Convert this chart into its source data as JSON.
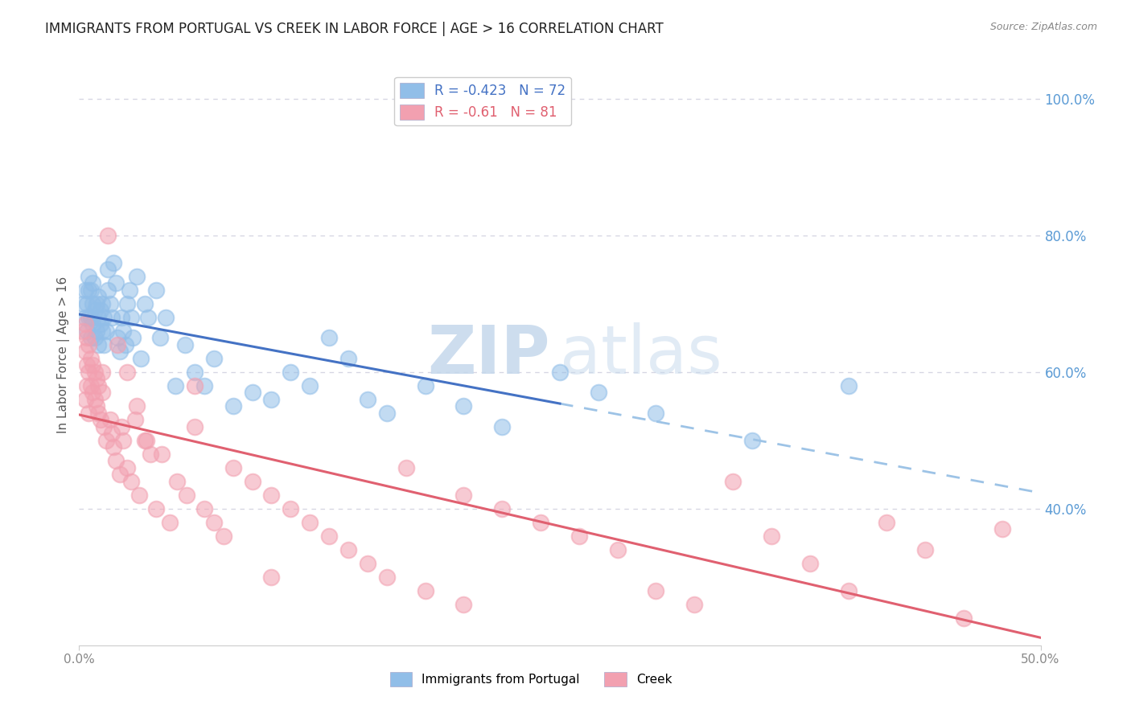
{
  "title": "IMMIGRANTS FROM PORTUGAL VS CREEK IN LABOR FORCE | AGE > 16 CORRELATION CHART",
  "source": "Source: ZipAtlas.com",
  "ylabel": "In Labor Force | Age > 16",
  "x_min": 0.0,
  "x_max": 0.5,
  "y_min": 0.2,
  "y_max": 1.05,
  "y_ticks": [
    0.4,
    0.6,
    0.8,
    1.0
  ],
  "y_tick_labels": [
    "40.0%",
    "60.0%",
    "80.0%",
    "100.0%"
  ],
  "x_ticks": [
    0.0,
    0.5
  ],
  "x_tick_labels": [
    "0.0%",
    "50.0%"
  ],
  "portugal_R": -0.423,
  "portugal_N": 72,
  "creek_R": -0.61,
  "creek_N": 81,
  "portugal_scatter_color": "#91BEE8",
  "creek_scatter_color": "#F2A0B0",
  "portugal_line_color": "#4472C4",
  "creek_line_color": "#E06070",
  "portugal_dash_color": "#9DC3E6",
  "background_color": "#FFFFFF",
  "grid_color": "#CCCCDD",
  "title_color": "#222222",
  "right_axis_color": "#5B9BD5",
  "legend_label_color": "#E06070",
  "watermark_color": "#D8E8F0",
  "portugal_x": [
    0.002,
    0.003,
    0.003,
    0.004,
    0.004,
    0.005,
    0.005,
    0.005,
    0.006,
    0.006,
    0.006,
    0.007,
    0.007,
    0.007,
    0.008,
    0.008,
    0.009,
    0.009,
    0.01,
    0.01,
    0.01,
    0.011,
    0.011,
    0.012,
    0.012,
    0.013,
    0.013,
    0.014,
    0.015,
    0.015,
    0.016,
    0.017,
    0.018,
    0.019,
    0.02,
    0.021,
    0.022,
    0.023,
    0.024,
    0.025,
    0.026,
    0.027,
    0.028,
    0.03,
    0.032,
    0.034,
    0.036,
    0.04,
    0.042,
    0.045,
    0.05,
    0.055,
    0.06,
    0.065,
    0.07,
    0.08,
    0.09,
    0.1,
    0.11,
    0.12,
    0.13,
    0.14,
    0.15,
    0.16,
    0.18,
    0.2,
    0.22,
    0.25,
    0.27,
    0.3,
    0.35,
    0.4
  ],
  "portugal_y": [
    0.7,
    0.68,
    0.72,
    0.66,
    0.7,
    0.68,
    0.72,
    0.74,
    0.65,
    0.68,
    0.72,
    0.67,
    0.7,
    0.73,
    0.65,
    0.69,
    0.66,
    0.7,
    0.68,
    0.71,
    0.64,
    0.67,
    0.69,
    0.66,
    0.7,
    0.64,
    0.68,
    0.66,
    0.72,
    0.75,
    0.7,
    0.68,
    0.76,
    0.73,
    0.65,
    0.63,
    0.68,
    0.66,
    0.64,
    0.7,
    0.72,
    0.68,
    0.65,
    0.74,
    0.62,
    0.7,
    0.68,
    0.72,
    0.65,
    0.68,
    0.58,
    0.64,
    0.6,
    0.58,
    0.62,
    0.55,
    0.57,
    0.56,
    0.6,
    0.58,
    0.65,
    0.62,
    0.56,
    0.54,
    0.58,
    0.55,
    0.52,
    0.6,
    0.57,
    0.54,
    0.5,
    0.58
  ],
  "creek_x": [
    0.002,
    0.003,
    0.003,
    0.004,
    0.004,
    0.005,
    0.005,
    0.006,
    0.006,
    0.007,
    0.007,
    0.008,
    0.008,
    0.009,
    0.009,
    0.01,
    0.01,
    0.011,
    0.012,
    0.012,
    0.013,
    0.014,
    0.015,
    0.016,
    0.017,
    0.018,
    0.019,
    0.02,
    0.021,
    0.022,
    0.023,
    0.025,
    0.027,
    0.029,
    0.031,
    0.034,
    0.037,
    0.04,
    0.043,
    0.047,
    0.051,
    0.056,
    0.06,
    0.065,
    0.07,
    0.075,
    0.08,
    0.09,
    0.1,
    0.11,
    0.12,
    0.13,
    0.14,
    0.15,
    0.16,
    0.17,
    0.18,
    0.2,
    0.22,
    0.24,
    0.26,
    0.28,
    0.3,
    0.32,
    0.34,
    0.36,
    0.38,
    0.4,
    0.42,
    0.44,
    0.46,
    0.003,
    0.004,
    0.005,
    0.025,
    0.03,
    0.035,
    0.06,
    0.2,
    0.48,
    0.1
  ],
  "creek_y": [
    0.66,
    0.63,
    0.67,
    0.61,
    0.65,
    0.6,
    0.64,
    0.58,
    0.62,
    0.57,
    0.61,
    0.56,
    0.6,
    0.55,
    0.59,
    0.54,
    0.58,
    0.53,
    0.57,
    0.6,
    0.52,
    0.5,
    0.8,
    0.53,
    0.51,
    0.49,
    0.47,
    0.64,
    0.45,
    0.52,
    0.5,
    0.46,
    0.44,
    0.53,
    0.42,
    0.5,
    0.48,
    0.4,
    0.48,
    0.38,
    0.44,
    0.42,
    0.52,
    0.4,
    0.38,
    0.36,
    0.46,
    0.44,
    0.42,
    0.4,
    0.38,
    0.36,
    0.34,
    0.32,
    0.3,
    0.46,
    0.28,
    0.42,
    0.4,
    0.38,
    0.36,
    0.34,
    0.28,
    0.26,
    0.44,
    0.36,
    0.32,
    0.28,
    0.38,
    0.34,
    0.24,
    0.56,
    0.58,
    0.54,
    0.6,
    0.55,
    0.5,
    0.58,
    0.26,
    0.37,
    0.3
  ]
}
